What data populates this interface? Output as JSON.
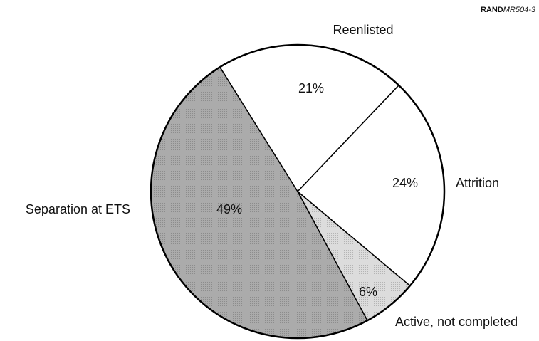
{
  "chart_data": {
    "type": "pie",
    "note": [
      "RAND",
      "MR504-3"
    ],
    "categories": [
      "Reenlisted",
      "Attrition",
      "Active, not completed",
      "Separation at ETS"
    ],
    "values": [
      21,
      24,
      6,
      49
    ],
    "value_labels": [
      "21%",
      "24%",
      "6%",
      "49%"
    ],
    "colors": [
      "#ffffff",
      "#ffffff",
      "#dcdcdc",
      "#ababab"
    ]
  }
}
